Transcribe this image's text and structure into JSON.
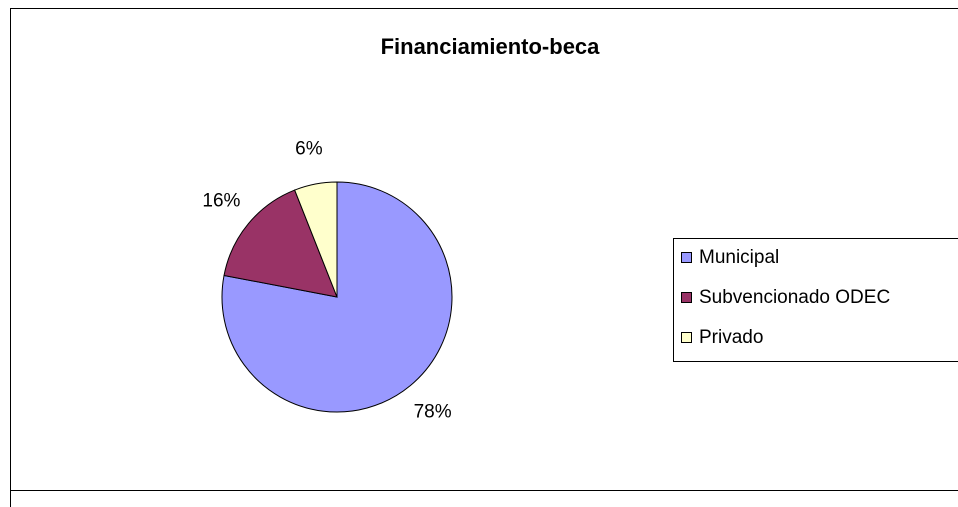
{
  "chart_data": {
    "type": "pie",
    "title": "Financiamiento-beca",
    "categories": [
      "Municipal",
      "Subvencionado ODEC",
      "Privado"
    ],
    "values": [
      78,
      16,
      6
    ],
    "value_labels": [
      "78%",
      "16%",
      "6%"
    ],
    "colors": [
      "#9999ff",
      "#993366",
      "#ffffcc"
    ],
    "legend": "right"
  }
}
